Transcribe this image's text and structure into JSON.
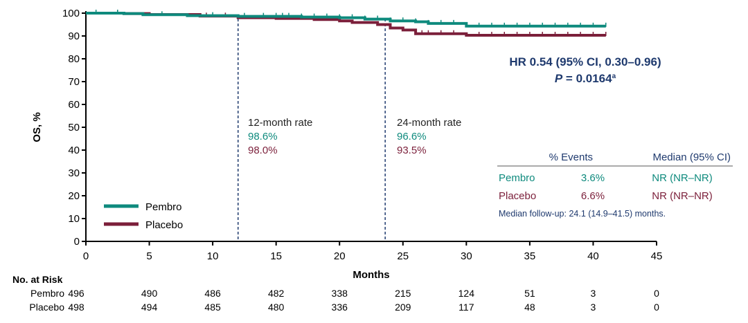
{
  "chart_data": {
    "type": "line",
    "subtype": "kaplan-meier",
    "xlabel": "Months",
    "ylabel": "OS, %",
    "xlim": [
      0,
      45
    ],
    "ylim": [
      0,
      100
    ],
    "xticks": [
      0,
      5,
      10,
      15,
      20,
      25,
      30,
      35,
      40,
      45
    ],
    "yticks": [
      0,
      10,
      20,
      30,
      40,
      50,
      60,
      70,
      80,
      90,
      100
    ],
    "grid": false,
    "legend_position": "bottom-left",
    "series": [
      {
        "name": "Pembro",
        "color": "#0e8a7d",
        "x": [
          0,
          3,
          4.5,
          8,
          12,
          17,
          20,
          22,
          24,
          26,
          27,
          30,
          41
        ],
        "y": [
          100,
          99.8,
          99.3,
          98.9,
          98.6,
          98.3,
          98.0,
          97.4,
          96.6,
          96.2,
          95.5,
          94.3,
          94.3
        ],
        "censor_x": [
          0.8,
          2.5,
          6,
          10,
          12.5,
          14,
          15,
          15.5,
          16,
          17,
          18,
          19,
          20,
          21,
          22,
          23,
          24,
          25,
          26,
          27,
          28,
          29,
          30,
          31,
          32,
          33,
          34,
          35,
          36,
          37,
          38,
          39,
          40,
          41
        ]
      },
      {
        "name": "Placebo",
        "color": "#7b1f3a",
        "x": [
          0,
          3,
          5,
          9,
          12,
          15,
          18,
          20,
          21,
          23,
          24,
          25,
          26,
          30,
          41
        ],
        "y": [
          100,
          99.8,
          99.4,
          98.7,
          98.0,
          97.7,
          97.2,
          96.6,
          95.9,
          95.0,
          93.5,
          92.6,
          91.0,
          90.3,
          90.3
        ],
        "censor_x": [
          2.5,
          9.5,
          11,
          26.5,
          27,
          28,
          29,
          31,
          32,
          33,
          34,
          35,
          36,
          37,
          38,
          39,
          40,
          41
        ]
      }
    ],
    "annotations": {
      "rate12": {
        "title": "12-month rate",
        "pembro": "98.6%",
        "placebo": "98.0%",
        "x": 12
      },
      "rate24": {
        "title": "24-month rate",
        "pembro": "96.6%",
        "placebo": "93.5%",
        "x": 23.6
      },
      "hr": "HR 0.54 (95% CI, 0.30–0.96)",
      "p_label": "P",
      "p_value": " = 0.0164",
      "p_sup": "a"
    },
    "summary_table": {
      "headers": [
        "",
        "% Events",
        "Median (95% CI)"
      ],
      "rows": [
        {
          "arm": "Pembro",
          "events": "3.6%",
          "median": "NR (NR–NR)"
        },
        {
          "arm": "Placebo",
          "events": "6.6%",
          "median": "NR (NR–NR)"
        }
      ],
      "footnote": "Median follow-up: 24.1 (14.9–41.5) months."
    },
    "at_risk": {
      "title": "No. at Risk",
      "rows": [
        {
          "arm": "Pembro",
          "values": [
            "496",
            "490",
            "486",
            "482",
            "338",
            "215",
            "124",
            "51",
            "3",
            "0"
          ]
        },
        {
          "arm": "Placebo",
          "values": [
            "498",
            "494",
            "485",
            "480",
            "336",
            "209",
            "117",
            "48",
            "3",
            "0"
          ]
        }
      ]
    }
  }
}
